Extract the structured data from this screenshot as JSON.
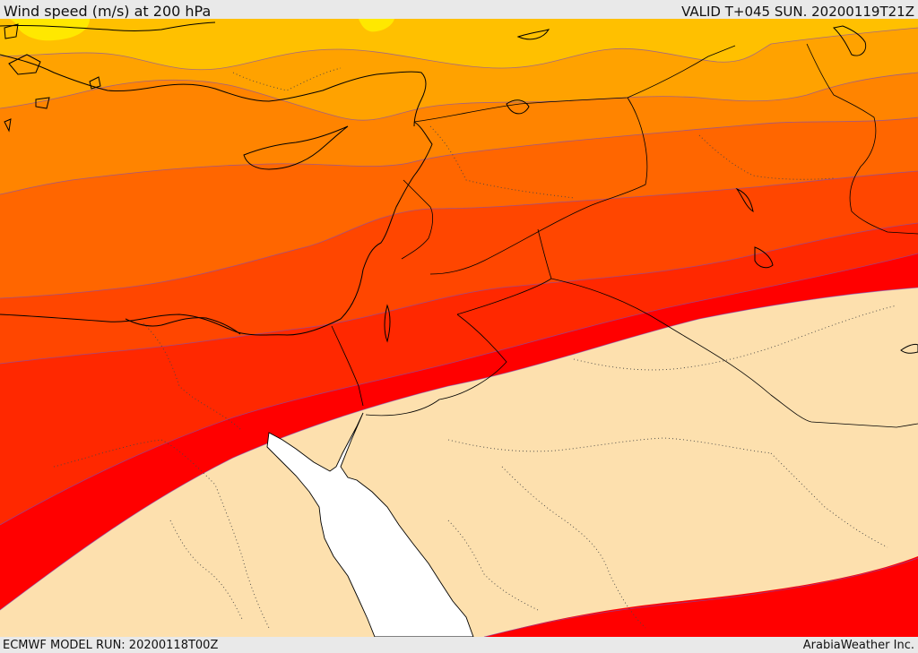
{
  "header": {
    "title": "Wind speed (m/s) at 200 hPa",
    "valid": "VALID T+045 SUN. 20200119T21Z"
  },
  "footer": {
    "model_run": "ECMWF MODEL RUN: 20200118T00Z",
    "credit": "ArabiaWeather Inc."
  },
  "colors": {
    "band_1": "#ffe800",
    "band_2": "#ffc000",
    "band_3": "#ffa200",
    "band_4": "#ff8400",
    "band_5": "#ff6600",
    "band_6": "#ff4600",
    "band_7": "#ff2800",
    "band_8": "#ff0000",
    "below_threshold": "#fde0ae",
    "sea_masked": "#ffffff"
  }
}
